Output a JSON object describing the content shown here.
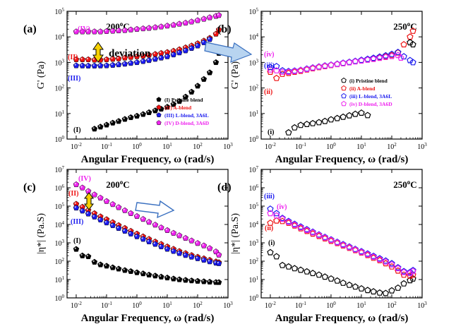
{
  "figure": {
    "panel_letters": [
      "(a)",
      "(b)",
      "(c)",
      "(d)"
    ],
    "deviation_label": "deviation"
  },
  "chart_data": [
    {
      "panel": "(a)",
      "type": "scatter",
      "temperature": "200",
      "temperature_unit": "C",
      "xlabel": "Angular Frequency, ω (rad/s)",
      "ylabel": "G' (Pa)",
      "x_scale": "log",
      "y_scale": "log",
      "xlim": [
        0.005,
        1000
      ],
      "ylim": [
        1,
        100000
      ],
      "x_tick_labels": [
        "10-2",
        "10-1",
        "100",
        "101",
        "102",
        "103"
      ],
      "y_tick_labels": [
        "100",
        "101",
        "102",
        "103",
        "104",
        "105"
      ],
      "legend_position": "bottom-right",
      "legend": [
        "(I) Pristine blend",
        "(II) A-blend",
        "(III) L-blend, 3A6L",
        "(IV) D-blend, 3A6D"
      ],
      "side_labels": [
        "(IV)",
        "(II)",
        "(III)",
        "(I)"
      ],
      "colors": {
        "I": "#000000",
        "II": "#ee1111",
        "III": "#1a1aee",
        "IV": "#ee22ee"
      },
      "series": [
        {
          "id": "I",
          "x": [
            0.04,
            0.063,
            0.1,
            0.16,
            0.25,
            0.4,
            0.63,
            1,
            1.6,
            2.5,
            4,
            6.3,
            10,
            16,
            25,
            40,
            63,
            100,
            160,
            250,
            400,
            500
          ],
          "y": [
            2.5,
            3,
            3.6,
            4.3,
            5,
            6,
            7,
            8,
            9.3,
            11,
            13,
            15,
            18,
            23,
            30,
            45,
            70,
            120,
            220,
            400,
            1000,
            2300
          ]
        },
        {
          "id": "II",
          "x": [
            0.01,
            0.016,
            0.025,
            0.04,
            0.063,
            0.1,
            0.16,
            0.25,
            0.4,
            0.63,
            1,
            1.6,
            2.5,
            4,
            6.3,
            10,
            16,
            25,
            40,
            63,
            100,
            160,
            250,
            400,
            500
          ],
          "y": [
            1300,
            1300,
            1300,
            1250,
            1250,
            1300,
            1350,
            1400,
            1500,
            1600,
            1700,
            1800,
            1950,
            2100,
            2300,
            2500,
            2800,
            3200,
            3800,
            4500,
            5500,
            7000,
            9000,
            13000,
            19000
          ]
        },
        {
          "id": "III",
          "x": [
            0.01,
            0.016,
            0.025,
            0.04,
            0.063,
            0.1,
            0.16,
            0.25,
            0.4,
            0.63,
            1,
            1.6,
            2.5,
            4,
            6.3,
            10,
            16,
            25,
            40,
            63,
            100,
            160,
            250
          ],
          "y": [
            750,
            740,
            730,
            730,
            740,
            750,
            780,
            820,
            870,
            930,
            1000,
            1100,
            1200,
            1350,
            1500,
            1700,
            2000,
            2400,
            2900,
            3600,
            4500,
            6000,
            8000
          ]
        },
        {
          "id": "IV",
          "x": [
            0.01,
            0.016,
            0.025,
            0.04,
            0.063,
            0.1,
            0.16,
            0.25,
            0.4,
            0.63,
            1,
            1.6,
            2.5,
            4,
            6.3,
            10,
            16,
            25,
            40,
            63,
            100,
            160,
            250,
            400,
            500
          ],
          "y": [
            16000,
            16000,
            16000,
            16000,
            16000,
            16500,
            17000,
            17500,
            18000,
            19000,
            20000,
            21000,
            22000,
            23500,
            25000,
            27000,
            29000,
            32000,
            35000,
            39000,
            44000,
            50000,
            57000,
            65000,
            70000
          ]
        }
      ]
    },
    {
      "panel": "(b)",
      "type": "scatter",
      "temperature": "250",
      "temperature_unit": "C",
      "xlabel": "Angular Frequency, ω (rad/s)",
      "ylabel": "G' (Pa)",
      "x_scale": "log",
      "y_scale": "log",
      "xlim": [
        0.005,
        1000
      ],
      "ylim": [
        1,
        100000
      ],
      "x_tick_labels": [
        "10-2",
        "10-1",
        "100",
        "101",
        "102",
        "103"
      ],
      "y_tick_labels": [
        "100",
        "101",
        "102",
        "103",
        "104",
        "105"
      ],
      "legend_position": "right",
      "legend": [
        "(i) Pristine blend",
        "(ii) A-blend",
        "(iii) L-blend, 3A6L",
        "(iv) D-blend, 3A6D"
      ],
      "side_labels": [
        "(iv)",
        "(iii)",
        "(ii)",
        "(i)"
      ],
      "colors": {
        "i": "#000000",
        "ii": "#ee1111",
        "iii": "#1a1aee",
        "iv": "#ee22ee"
      },
      "series": [
        {
          "id": "i",
          "x": [
            0.04,
            0.063,
            0.1,
            0.16,
            0.25,
            0.4,
            0.63,
            1,
            1.6,
            2.5,
            4,
            6.3,
            10,
            16
          ],
          "y": [
            1.8,
            2.8,
            3.5,
            3.8,
            4.1,
            4.5,
            5,
            5.8,
            6.5,
            7.3,
            8.3,
            9.5,
            10.5,
            8.5
          ]
        },
        {
          "id": "ii",
          "x": [
            0.01,
            0.016,
            0.025,
            0.04,
            0.063,
            0.1,
            0.16,
            0.25,
            0.4,
            0.63,
            1,
            1.6,
            2.5,
            4,
            6.3,
            10,
            16,
            25,
            40,
            63,
            100,
            160,
            250,
            400,
            500
          ],
          "y": [
            420,
            240,
            350,
            380,
            420,
            460,
            520,
            580,
            640,
            700,
            770,
            840,
            920,
            1000,
            1100,
            1200,
            1300,
            1400,
            1550,
            1700,
            1900,
            2400,
            5000,
            10000,
            17000
          ]
        },
        {
          "id": "iii",
          "x": [
            0.01,
            0.016,
            0.025,
            0.04,
            0.063,
            0.1,
            0.16,
            0.25,
            0.4,
            0.63,
            1,
            1.6,
            2.5,
            4,
            6.3,
            10,
            16,
            25,
            40,
            63,
            100,
            160,
            250,
            400,
            500
          ],
          "y": [
            650,
            700,
            480,
            450,
            470,
            500,
            560,
            620,
            680,
            740,
            800,
            870,
            950,
            1030,
            1120,
            1230,
            1350,
            1480,
            1650,
            1850,
            2100,
            2500,
            1700,
            1200,
            1000
          ]
        },
        {
          "id": "iv",
          "x": [
            0.01,
            0.016,
            0.025,
            0.04,
            0.063,
            0.1,
            0.16,
            0.25,
            0.4,
            0.63,
            1,
            1.6,
            2.5,
            4,
            6.3,
            10,
            16,
            25,
            40,
            63,
            100,
            160,
            200
          ],
          "y": [
            520,
            480,
            420,
            420,
            450,
            490,
            540,
            600,
            660,
            720,
            780,
            850,
            920,
            990,
            1070,
            1160,
            1250,
            1350,
            1470,
            1600,
            1750,
            1900,
            1500
          ]
        },
        {
          "id": "i-end",
          "x": [
            400,
            500
          ],
          "y": [
            6000,
            5000
          ]
        }
      ]
    },
    {
      "panel": "(c)",
      "type": "scatter",
      "temperature": "200",
      "temperature_unit": "C",
      "xlabel": "Angular Frequency, ω (rad/s)",
      "ylabel": "|η*| (Pa.S)",
      "x_scale": "log",
      "y_scale": "log",
      "xlim": [
        0.005,
        1000
      ],
      "ylim": [
        1,
        10000000
      ],
      "x_tick_labels": [
        "10-2",
        "10-1",
        "100",
        "101",
        "102",
        "103"
      ],
      "y_tick_labels": [
        "100",
        "101",
        "102",
        "103",
        "104",
        "105",
        "106",
        "107"
      ],
      "side_labels": [
        "(IV)",
        "(II)",
        "(III)",
        "(I)"
      ],
      "colors": {
        "I": "#000000",
        "II": "#ee1111",
        "III": "#1a1aee",
        "IV": "#ee22ee"
      },
      "series": [
        {
          "id": "I",
          "x": [
            0.01,
            0.016,
            0.025,
            0.04,
            0.063,
            0.1,
            0.16,
            0.25,
            0.4,
            0.63,
            1,
            1.6,
            2.5,
            4,
            6.3,
            10,
            16,
            25,
            40,
            63,
            100,
            160,
            250,
            400,
            500
          ],
          "y": [
            450,
            200,
            180,
            90,
            65,
            55,
            45,
            38,
            32,
            28,
            24,
            21,
            18,
            16,
            14,
            12.5,
            11,
            10,
            9.3,
            8.7,
            8.2,
            7.8,
            7.4,
            7.1,
            7
          ]
        },
        {
          "id": "II",
          "x": [
            0.01,
            0.016,
            0.025,
            0.04,
            0.063,
            0.1,
            0.16,
            0.25,
            0.4,
            0.63,
            1,
            1.6,
            2.5,
            4,
            6.3,
            10,
            16,
            25,
            40,
            63,
            100,
            160,
            250,
            400,
            500
          ],
          "y": [
            130000,
            90000,
            60000,
            40000,
            27000,
            19000,
            13000,
            9000,
            6300,
            4400,
            3100,
            2200,
            1600,
            1150,
            850,
            620,
            460,
            350,
            270,
            210,
            170,
            140,
            115,
            95,
            85
          ]
        },
        {
          "id": "III",
          "x": [
            0.01,
            0.016,
            0.025,
            0.04,
            0.063,
            0.1,
            0.16,
            0.25,
            0.4,
            0.63,
            1,
            1.6,
            2.5,
            4,
            6.3,
            10,
            16,
            25,
            40,
            63,
            100,
            160,
            250,
            400,
            500
          ],
          "y": [
            80000,
            55000,
            38000,
            26000,
            18000,
            12500,
            8800,
            6200,
            4400,
            3100,
            2200,
            1600,
            1150,
            850,
            620,
            460,
            350,
            270,
            210,
            170,
            140,
            115,
            95,
            80,
            75
          ]
        },
        {
          "id": "IV",
          "x": [
            0.01,
            0.016,
            0.025,
            0.04,
            0.063,
            0.1,
            0.16,
            0.25,
            0.4,
            0.63,
            1,
            1.6,
            2.5,
            4,
            6.3,
            10,
            16,
            25,
            40,
            63,
            100,
            160,
            250,
            400,
            500
          ],
          "y": [
            1500000,
            1000000,
            650000,
            420000,
            280000,
            185000,
            125000,
            85000,
            58000,
            40000,
            28000,
            19500,
            13500,
            9500,
            6700,
            4800,
            3400,
            2500,
            1800,
            1300,
            950,
            700,
            500,
            330,
            220
          ]
        }
      ]
    },
    {
      "panel": "(d)",
      "type": "scatter",
      "temperature": "250",
      "temperature_unit": "C",
      "xlabel": "Angular Frequency, ω (rad/s)",
      "ylabel": "|η*| (Pa.S)",
      "x_scale": "log",
      "y_scale": "log",
      "xlim": [
        0.005,
        1000
      ],
      "ylim": [
        1,
        10000000
      ],
      "x_tick_labels": [
        "10-2",
        "10-1",
        "100",
        "101",
        "102",
        "103"
      ],
      "y_tick_labels": [
        "100",
        "101",
        "102",
        "103",
        "104",
        "105",
        "106",
        "107"
      ],
      "side_labels": [
        "(iii)",
        "(iv)",
        "(ii)",
        "(i)"
      ],
      "colors": {
        "i": "#000000",
        "ii": "#ee1111",
        "iii": "#1a1aee",
        "iv": "#ee22ee"
      },
      "series": [
        {
          "id": "i",
          "x": [
            0.01,
            0.016,
            0.025,
            0.04,
            0.063,
            0.1,
            0.16,
            0.25,
            0.4,
            0.63,
            1,
            1.6,
            2.5,
            4,
            6.3,
            10,
            16,
            25,
            40,
            63,
            100,
            160,
            250,
            400,
            500
          ],
          "y": [
            300,
            180,
            60,
            50,
            40,
            33,
            27,
            22,
            18,
            14,
            11,
            8.5,
            6.5,
            5,
            4,
            3.2,
            2.6,
            2.2,
            1.9,
            1.8,
            2.5,
            3.5,
            6,
            9,
            11
          ]
        },
        {
          "id": "ii",
          "x": [
            0.01,
            0.016,
            0.025,
            0.04,
            0.063,
            0.1,
            0.16,
            0.25,
            0.4,
            0.63,
            1,
            1.6,
            2.5,
            4,
            6.3,
            10,
            16,
            25,
            40,
            63,
            100,
            160,
            250,
            400,
            500
          ],
          "y": [
            12000,
            16000,
            15000,
            12000,
            8500,
            6000,
            4300,
            3100,
            2300,
            1700,
            1250,
            950,
            700,
            520,
            390,
            290,
            210,
            150,
            110,
            75,
            50,
            30,
            18,
            16,
            18
          ]
        },
        {
          "id": "iii",
          "x": [
            0.01,
            0.016,
            0.025,
            0.04,
            0.063,
            0.1,
            0.16,
            0.25,
            0.4,
            0.63,
            1,
            1.6,
            2.5,
            4,
            6.3,
            10,
            16,
            25,
            40,
            63,
            100,
            160,
            250,
            400,
            500
          ],
          "y": [
            70000,
            40000,
            22000,
            15000,
            10500,
            7500,
            5400,
            3900,
            2800,
            2050,
            1500,
            1100,
            820,
            610,
            450,
            340,
            255,
            190,
            140,
            105,
            75,
            45,
            28,
            25,
            32
          ]
        },
        {
          "id": "iv",
          "x": [
            0.01,
            0.016,
            0.025,
            0.04,
            0.063,
            0.1,
            0.16,
            0.25,
            0.4,
            0.63,
            1,
            1.6,
            2.5,
            4,
            6.3,
            10,
            16,
            25,
            40,
            63,
            100,
            160,
            250,
            400,
            500
          ],
          "y": [
            40000,
            30000,
            20000,
            13500,
            9500,
            6800,
            4900,
            3600,
            2600,
            1900,
            1400,
            1030,
            760,
            560,
            420,
            310,
            230,
            170,
            125,
            92,
            65,
            40,
            25,
            22,
            28
          ]
        }
      ]
    }
  ]
}
